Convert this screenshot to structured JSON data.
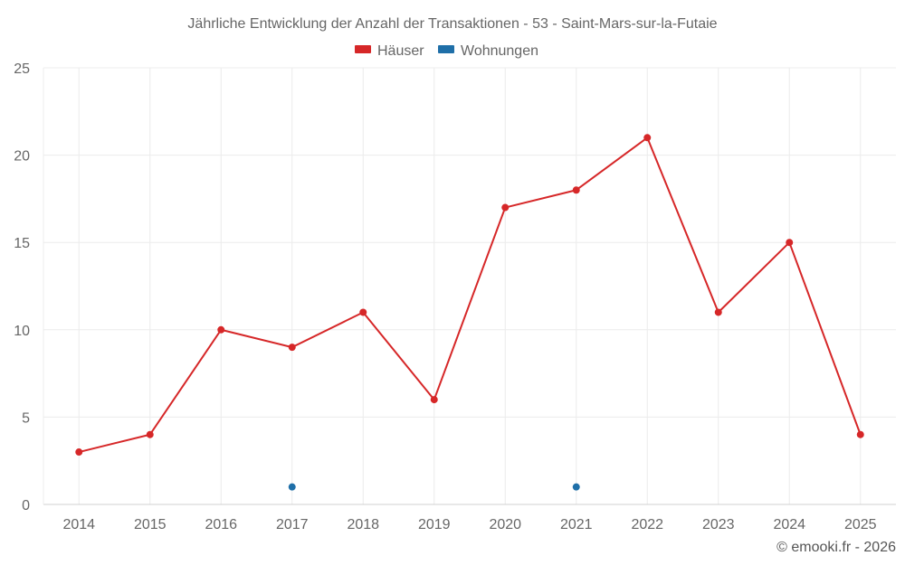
{
  "chart_data": {
    "type": "line",
    "title": "Jährliche Entwicklung der Anzahl der Transaktionen - 53 - Saint-Mars-sur-la-Futaie",
    "categories": [
      "2014",
      "2015",
      "2016",
      "2017",
      "2018",
      "2019",
      "2020",
      "2021",
      "2022",
      "2023",
      "2024",
      "2025"
    ],
    "series": [
      {
        "name": "Häuser",
        "color": "#d62728",
        "values": [
          3,
          4,
          10,
          9,
          11,
          6,
          17,
          18,
          21,
          11,
          15,
          4
        ]
      },
      {
        "name": "Wohnungen",
        "color": "#1f6fa8",
        "values": [
          null,
          null,
          null,
          1,
          null,
          null,
          null,
          1,
          null,
          null,
          null,
          null
        ]
      }
    ],
    "ylim": [
      0,
      25
    ],
    "yticks": [
      0,
      5,
      10,
      15,
      20,
      25
    ],
    "xlabel": "",
    "ylabel": "",
    "grid": true,
    "legend": "top-center"
  },
  "credit": "© emooki.fr - 2026"
}
